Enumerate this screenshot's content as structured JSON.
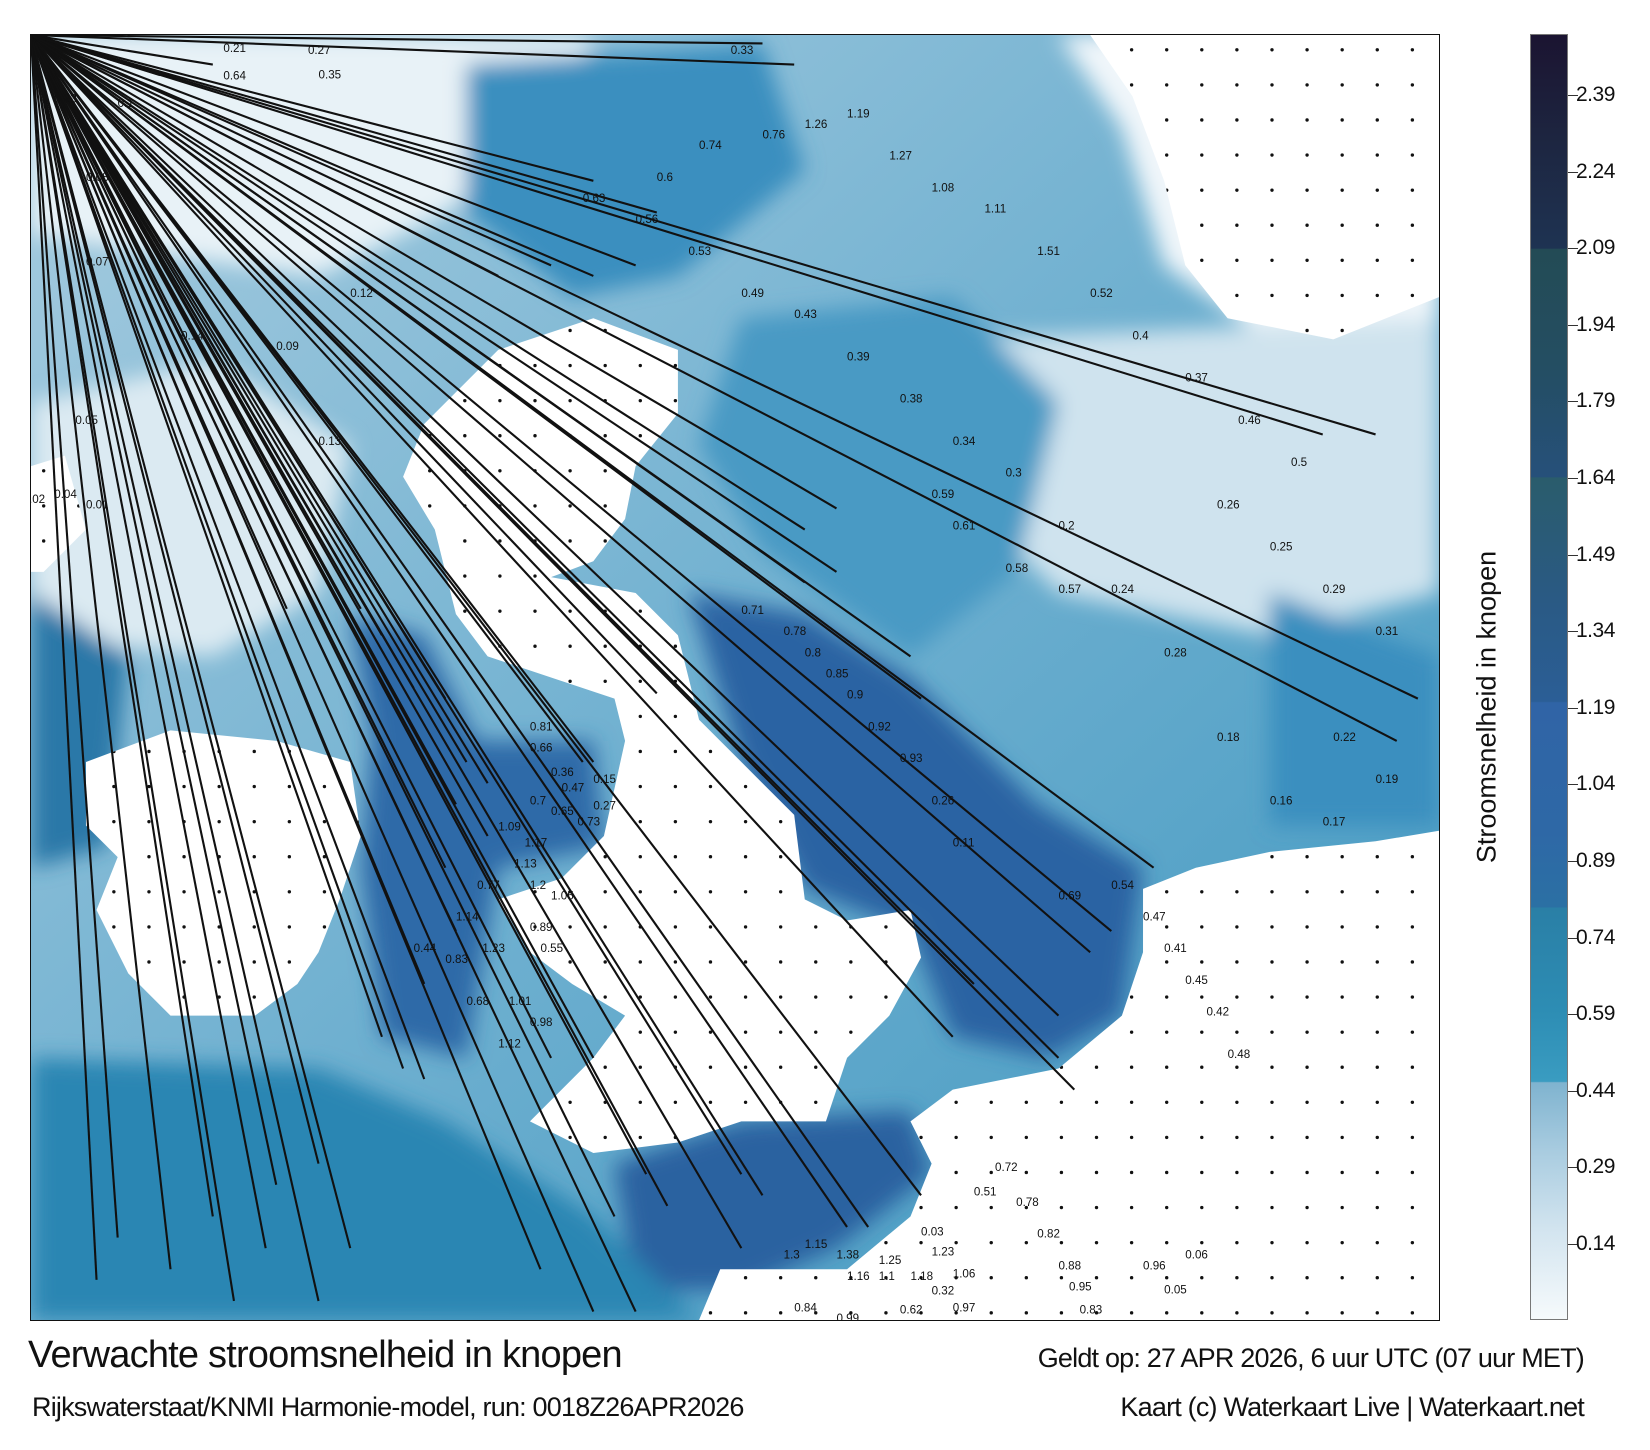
{
  "map": {
    "title": "Verwachte stroomsnelheid in knopen",
    "valid_time": "Geldt op: 27 APR 2026, 6 uur UTC (07 uur MET)",
    "source": "Rijkswaterstaat/KNMI Harmonie-model, run: 0018Z26APR2026",
    "credit": "Kaart (c) Waterkaart Live | Waterkaart.net",
    "current_labels": [
      "0.21",
      "0.27",
      "0.35",
      "0.33",
      "0.23",
      "0.1",
      "0.08",
      "0.07",
      "0.14",
      "0.05",
      "0.04",
      "0.01",
      "0.02",
      "0.09",
      "0.12",
      "0.13",
      "0.81",
      "0.66",
      "0.36",
      "0.15",
      "0.47",
      "0.27",
      "0.7",
      "0.65",
      "0.73",
      "1.09",
      "1.17",
      "1.13",
      "0.77",
      "1.2",
      "1.05",
      "1.14",
      "1.23",
      "0.44",
      "0.83",
      "0.89",
      "0.55",
      "0.68",
      "1.01",
      "0.98",
      "1.12",
      "1.15",
      "1.3",
      "1.38",
      "1.25",
      "1.16",
      "1.1",
      "1.18",
      "1.23",
      "1.06",
      "0.97",
      "0.84",
      "0.99",
      "1.45",
      "0.65",
      "0.67",
      "0.62",
      "0.32",
      "0.03",
      "0.51",
      "0.72",
      "0.78",
      "0.82",
      "0.88",
      "0.95",
      "0.83",
      "0.96",
      "0.05",
      "0.06",
      "0.11",
      "0.26",
      "0.93",
      "0.92",
      "0.9",
      "0.85",
      "0.8",
      "0.78",
      "0.71",
      "0.69",
      "0.54",
      "0.47",
      "0.41",
      "0.45",
      "0.42",
      "0.48",
      "0.57",
      "0.58",
      "0.61",
      "0.59",
      "0.26",
      "0.25",
      "0.29",
      "0.31",
      "0.22",
      "0.19",
      "0.17",
      "0.16",
      "0.18",
      "0.28",
      "0.24",
      "0.2",
      "0.3",
      "0.34",
      "0.38",
      "0.39",
      "0.43",
      "0.49",
      "0.53",
      "0.56",
      "0.63",
      "0.6",
      "0.74",
      "0.76",
      "1.26",
      "1.19",
      "1.27",
      "1.08",
      "1.11",
      "1.51",
      "0.52",
      "0.4",
      "0.37",
      "0.46",
      "0.5",
      "0.64"
    ]
  },
  "colorbar": {
    "label": "Stroomsnelheid in knopen",
    "ticks": [
      0.14,
      0.29,
      0.44,
      0.59,
      0.74,
      0.89,
      1.04,
      1.19,
      1.34,
      1.49,
      1.64,
      1.79,
      1.94,
      2.09,
      2.24,
      2.39
    ],
    "tick_labels": [
      "0.14",
      "0.29",
      "0.44",
      "0.59",
      "0.74",
      "0.89",
      "1.04",
      "1.19",
      "1.34",
      "1.49",
      "1.64",
      "1.79",
      "1.94",
      "2.09",
      "2.24",
      "2.39"
    ],
    "colors": {
      "max": "#1b1431",
      "high": "#1e3352",
      "mid": "#2b5e96",
      "low": "#3a9cc1",
      "zero": "#ffffff"
    }
  }
}
